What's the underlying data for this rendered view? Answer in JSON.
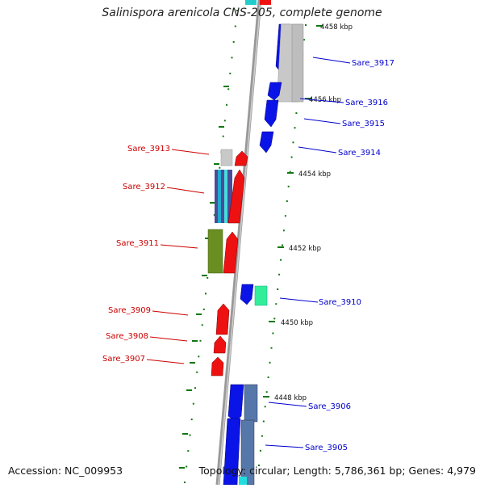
{
  "title": "Salinispora arenicola CNS-205, complete genome",
  "footer": {
    "accession": "Accession: NC_009953",
    "summary": "Topology: circular; Length: 5,786,361 bp; Genes: 4,979"
  },
  "ruler": [
    "4458 kbp",
    "4456 kbp",
    "4454 kbp",
    "4452 kbp",
    "4450 kbp",
    "4448 kbp"
  ],
  "genes_right": [
    "Sare_3917",
    "Sare_3916",
    "Sare_3915",
    "Sare_3914",
    "Sare_3910",
    "Sare_3906",
    "Sare_3905"
  ],
  "genes_left": [
    "Sare_3913",
    "Sare_3912",
    "Sare_3911",
    "Sare_3909",
    "Sare_3908",
    "Sare_3907"
  ],
  "colors": {
    "forward_label": "#0000cc",
    "reverse_label": "#cc0000",
    "blue_feature": "#0a14e6",
    "red_feature": "#ee1111",
    "tick": "#117711",
    "backbone": "#888888"
  }
}
